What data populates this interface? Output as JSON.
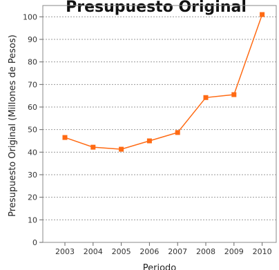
{
  "chart_data": {
    "type": "line",
    "title": "Presupuesto Original",
    "xlabel": "Periodo",
    "ylabel": "Presupuesto Original (Millones de Pesos)",
    "categories": [
      "2003",
      "2004",
      "2005",
      "2006",
      "2007",
      "2008",
      "2009",
      "2010"
    ],
    "series": [
      {
        "values": [
          46.5,
          42.2,
          41.3,
          45.0,
          48.7,
          64.2,
          65.5,
          101.0
        ],
        "color": "#ff6a13"
      }
    ],
    "ylim": [
      0,
      105
    ],
    "yticks": [
      0,
      10,
      20,
      30,
      40,
      50,
      60,
      70,
      80,
      90,
      100
    ],
    "grid": true,
    "grid_axis": "y",
    "legend": "none",
    "marker": "square",
    "colors": {
      "line": "#ff6a13",
      "grid": "#9a9a9a",
      "axis": "#666666"
    }
  }
}
